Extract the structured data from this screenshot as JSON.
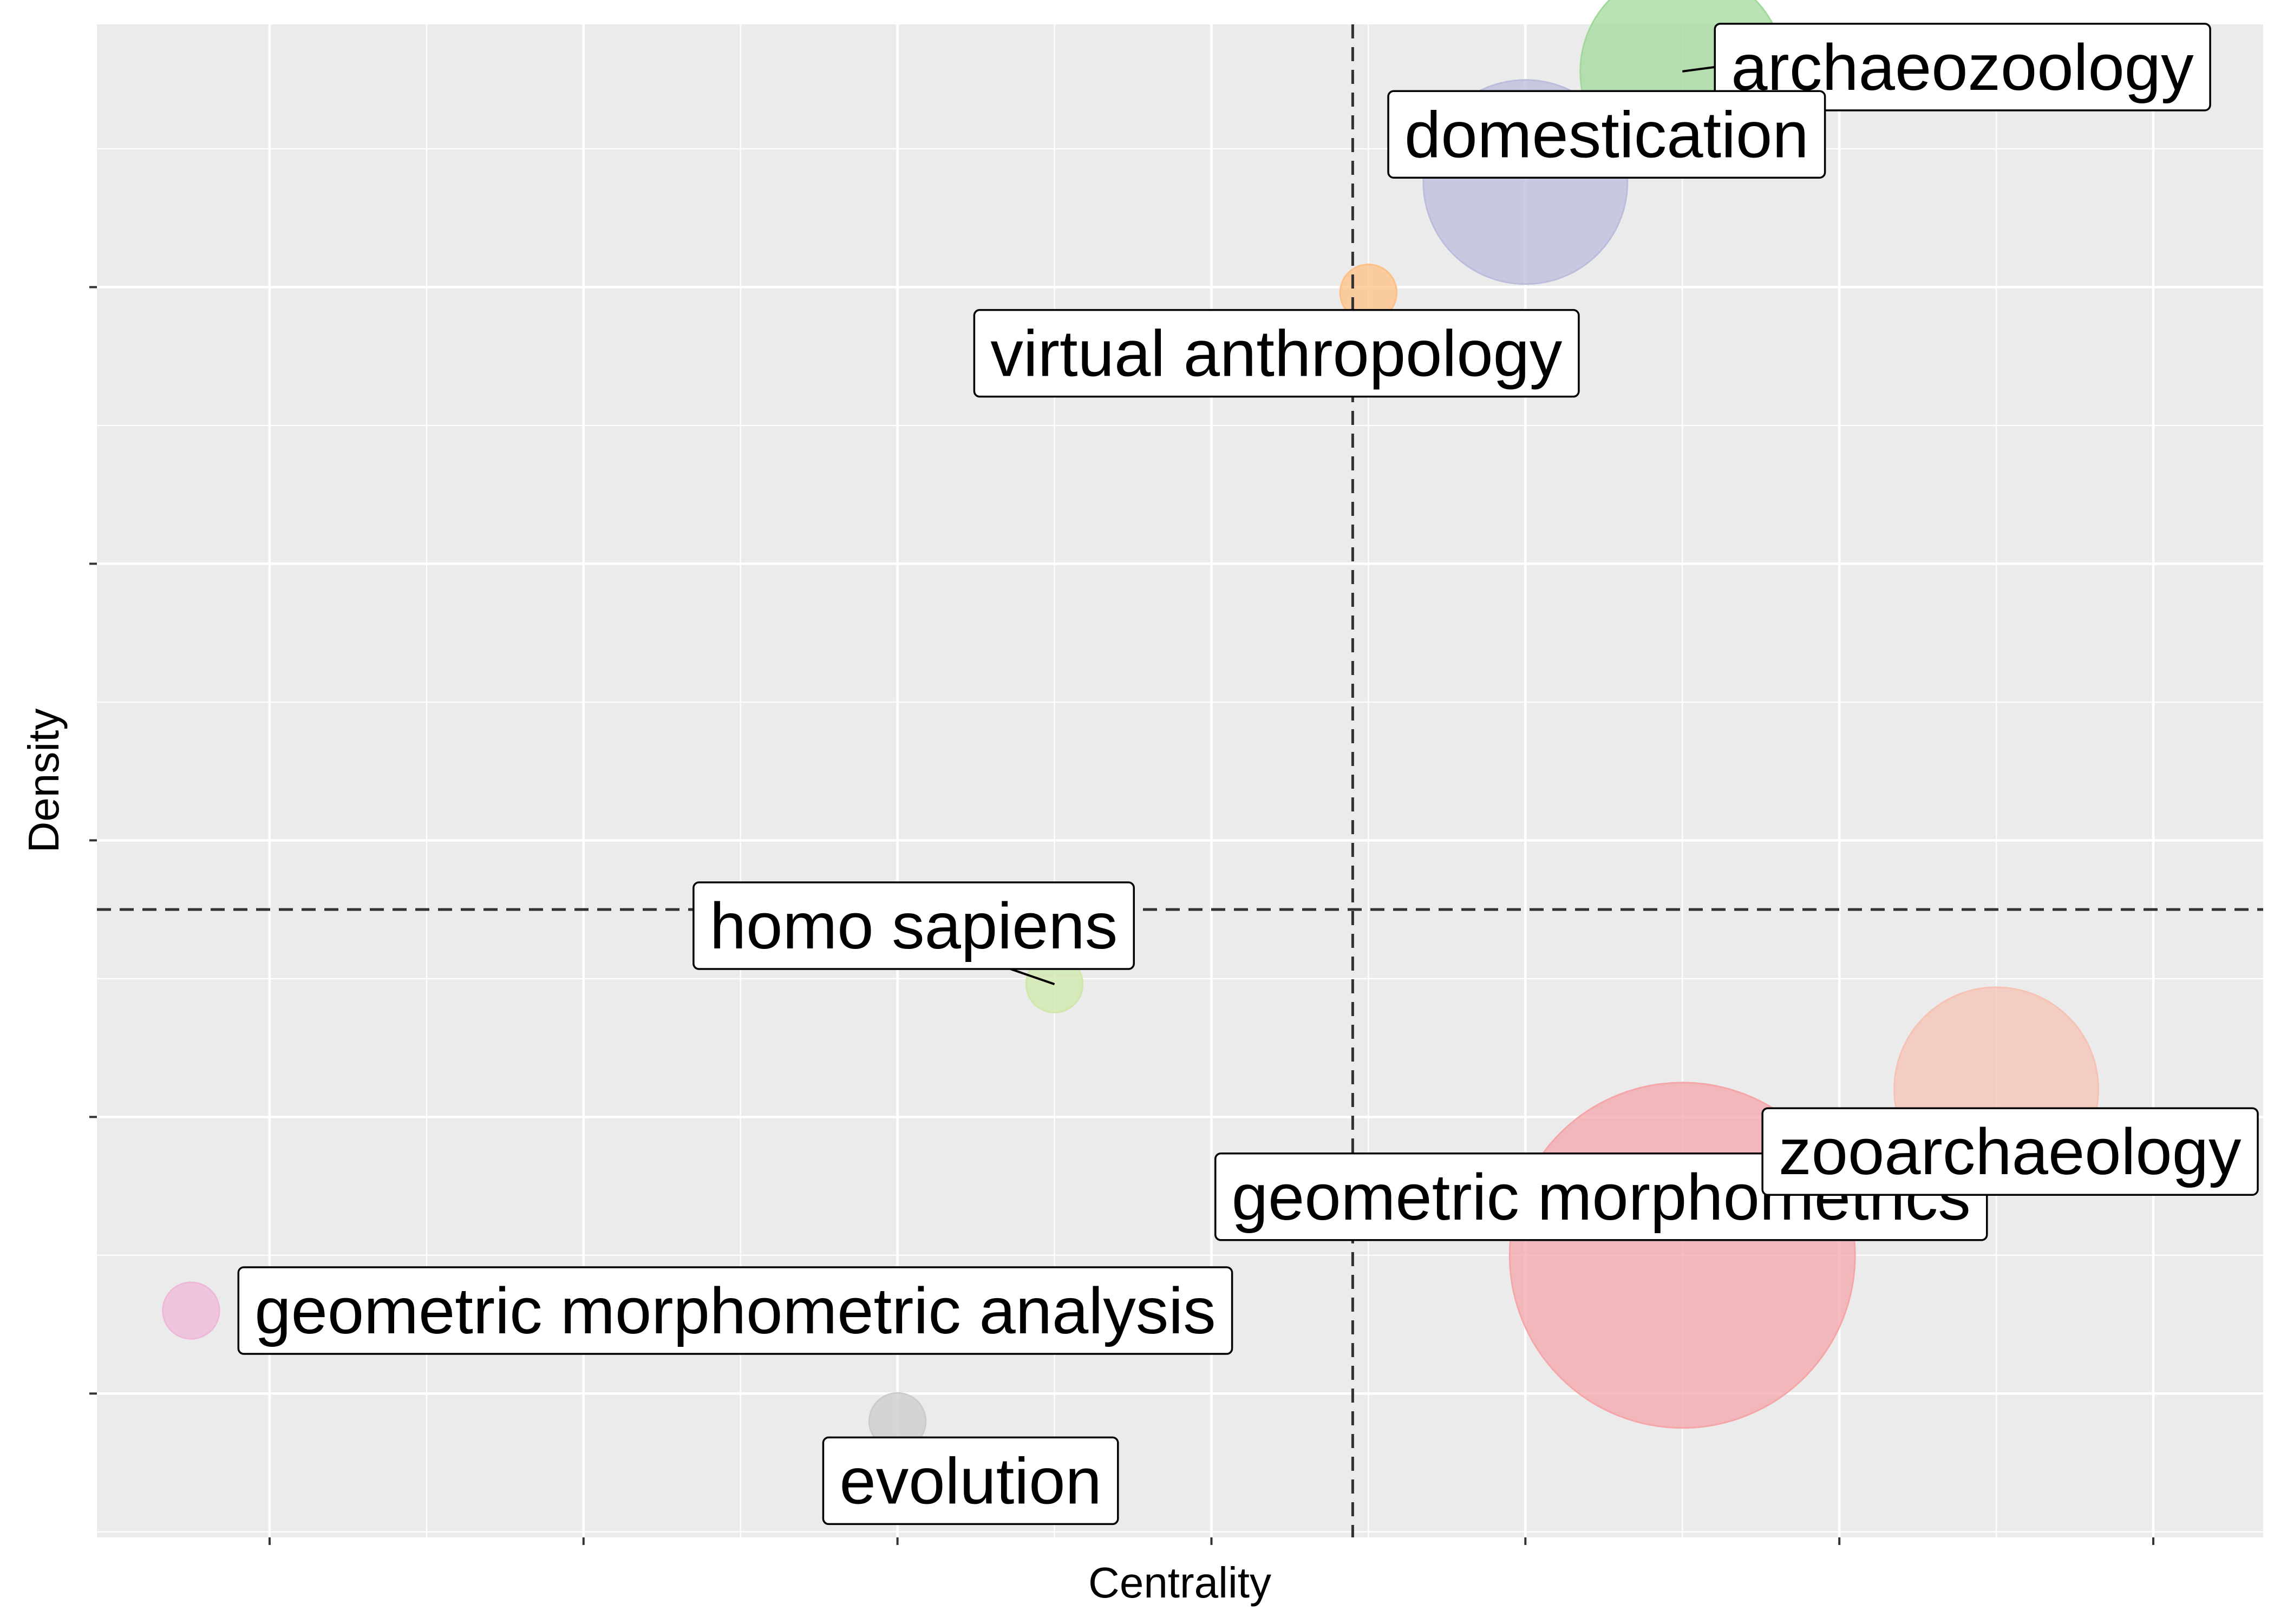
{
  "chart_data": {
    "type": "scatter",
    "subtype": "bubble",
    "xlabel": "Centrality",
    "ylabel": "Density",
    "grid": true,
    "tick_labels_shown": false,
    "reference_lines": {
      "x": 4.45,
      "y": 3.25
    },
    "xlim": [
      0.45,
      7.35
    ],
    "ylim": [
      0.98,
      6.45
    ],
    "points": [
      {
        "label": "archaeozoology",
        "x": 5.5,
        "y": 6.28,
        "size": 0.65,
        "color": "#a1d99b"
      },
      {
        "label": "domestication",
        "x": 5.0,
        "y": 5.88,
        "size": 0.65,
        "color": "#bcbddc"
      },
      {
        "label": "virtual anthropology",
        "x": 4.5,
        "y": 5.48,
        "size": 0.18,
        "color": "#fdc086"
      },
      {
        "label": "homo sapiens",
        "x": 3.5,
        "y": 2.98,
        "size": 0.18,
        "color": "#cfe8a9"
      },
      {
        "label": "geometric morphometrics",
        "x": 5.5,
        "y": 2.0,
        "size": 1.1,
        "color": "#f4a6a9"
      },
      {
        "label": "zooarchaeology",
        "x": 6.5,
        "y": 2.6,
        "size": 0.65,
        "color": "#f5c2b4"
      },
      {
        "label": "geometric morphometric analysis",
        "x": 0.75,
        "y": 1.8,
        "size": 0.18,
        "color": "#f0b8d8"
      },
      {
        "label": "evolution",
        "x": 3.0,
        "y": 1.4,
        "size": 0.18,
        "color": "#cccccc"
      }
    ]
  }
}
